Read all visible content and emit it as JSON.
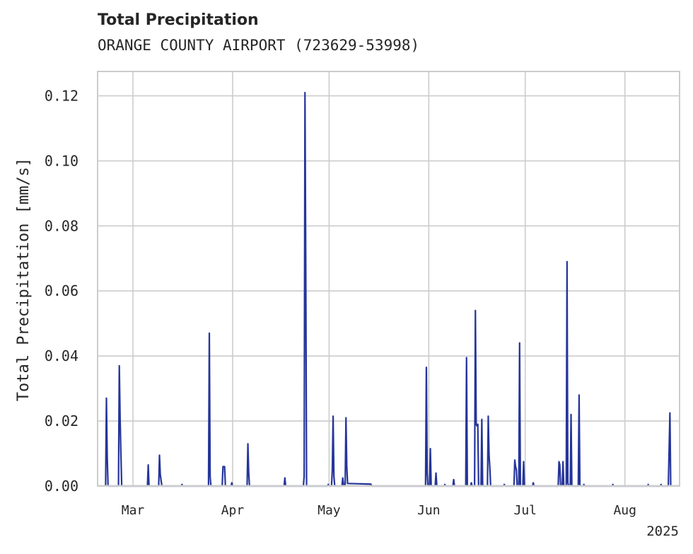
{
  "chart_data": {
    "type": "line",
    "title": "Total Precipitation",
    "subtitle": "ORANGE COUNTY AIRPORT (723629-53998)",
    "ylabel": "Total Precipitation [mm/s]",
    "xlabel": "",
    "x_year_label": "2025",
    "x_range": [
      "2025-02-18",
      "2025-08-18"
    ],
    "ylim": [
      0,
      0.1275
    ],
    "yticks": [
      "0.00",
      "0.02",
      "0.04",
      "0.06",
      "0.08",
      "0.10",
      "0.12"
    ],
    "ytick_values": [
      0,
      0.02,
      0.04,
      0.06,
      0.08,
      0.1,
      0.12
    ],
    "xticks": [
      {
        "date": "2025-03-01",
        "label": "Mar"
      },
      {
        "date": "2025-04-01",
        "label": "Apr"
      },
      {
        "date": "2025-05-01",
        "label": "May"
      },
      {
        "date": "2025-06-01",
        "label": "Jun"
      },
      {
        "date": "2025-07-01",
        "label": "Jul"
      },
      {
        "date": "2025-08-01",
        "label": "Aug"
      }
    ],
    "grid": true,
    "series_color": "#25359a",
    "series": [
      {
        "name": "",
        "points": [
          [
            "2025-02-20T12:00",
            0.0
          ],
          [
            "2025-02-20T18:00",
            0.027
          ],
          [
            "2025-02-21T00:00",
            0.009
          ],
          [
            "2025-02-21T06:00",
            0.0
          ],
          [
            "2025-02-24T12:00",
            0.0
          ],
          [
            "2025-02-24T18:00",
            0.037
          ],
          [
            "2025-02-25T00:00",
            0.021
          ],
          [
            "2025-02-25T06:00",
            0.01
          ],
          [
            "2025-02-25T12:00",
            0.0
          ],
          [
            "2025-03-05T12:00",
            0.0
          ],
          [
            "2025-03-05T18:00",
            0.0065
          ],
          [
            "2025-03-06T00:00",
            0.0
          ],
          [
            "2025-03-09T00:00",
            0.0
          ],
          [
            "2025-03-09T06:00",
            0.0095
          ],
          [
            "2025-03-09T12:00",
            0.0035
          ],
          [
            "2025-03-10T00:00",
            0.0
          ],
          [
            "2025-03-16T00:00",
            0.0
          ],
          [
            "2025-03-16T06:00",
            0.0005
          ],
          [
            "2025-03-16T12:00",
            0.0
          ],
          [
            "2025-03-24T12:00",
            0.0
          ],
          [
            "2025-03-24T18:00",
            0.047
          ],
          [
            "2025-03-25T00:00",
            0.003
          ],
          [
            "2025-03-25T06:00",
            0.0
          ],
          [
            "2025-03-28T18:00",
            0.0
          ],
          [
            "2025-03-29T00:00",
            0.006
          ],
          [
            "2025-03-29T12:00",
            0.006
          ],
          [
            "2025-03-29T18:00",
            0.0
          ],
          [
            "2025-03-31T12:00",
            0.0
          ],
          [
            "2025-03-31T18:00",
            0.001
          ],
          [
            "2025-04-01T00:00",
            0.0
          ],
          [
            "2025-04-05T12:00",
            0.0
          ],
          [
            "2025-04-05T18:00",
            0.013
          ],
          [
            "2025-04-06T00:00",
            0.004
          ],
          [
            "2025-04-06T06:00",
            0.0
          ],
          [
            "2025-04-17T00:00",
            0.0
          ],
          [
            "2025-04-17T06:00",
            0.0025
          ],
          [
            "2025-04-17T12:00",
            0.0
          ],
          [
            "2025-04-23T00:00",
            0.0
          ],
          [
            "2025-04-23T06:00",
            0.003
          ],
          [
            "2025-04-23T12:00",
            0.121
          ],
          [
            "2025-04-23T18:00",
            0.066
          ],
          [
            "2025-04-24T00:00",
            0.0
          ],
          [
            "2025-04-30T12:00",
            0.0
          ],
          [
            "2025-04-30T18:00",
            0.0005
          ],
          [
            "2025-05-01T00:00",
            0.0
          ],
          [
            "2025-05-01T18:00",
            0.0
          ],
          [
            "2025-05-02T00:00",
            0.005
          ],
          [
            "2025-05-02T06:00",
            0.0215
          ],
          [
            "2025-05-02T12:00",
            0.003
          ],
          [
            "2025-05-02T18:00",
            0.0
          ],
          [
            "2025-05-05T00:00",
            0.0
          ],
          [
            "2025-05-05T06:00",
            0.0025
          ],
          [
            "2025-05-05T12:00",
            0.0005
          ],
          [
            "2025-05-06T00:00",
            0.0005
          ],
          [
            "2025-05-06T06:00",
            0.021
          ],
          [
            "2025-05-06T12:00",
            0.006
          ],
          [
            "2025-05-06T18:00",
            0.0008
          ],
          [
            "2025-05-14T00:00",
            0.0006
          ],
          [
            "2025-05-14T06:00",
            0.0
          ],
          [
            "2025-05-31T00:00",
            0.0
          ],
          [
            "2025-05-31T06:00",
            0.0365
          ],
          [
            "2025-05-31T12:00",
            0.004
          ],
          [
            "2025-05-31T18:00",
            0.0
          ],
          [
            "2025-06-01T06:00",
            0.0
          ],
          [
            "2025-06-01T12:00",
            0.0115
          ],
          [
            "2025-06-01T18:00",
            0.0
          ],
          [
            "2025-06-03T00:00",
            0.0
          ],
          [
            "2025-06-03T06:00",
            0.004
          ],
          [
            "2025-06-03T12:00",
            0.0
          ],
          [
            "2025-06-05T18:00",
            0.0
          ],
          [
            "2025-06-06T00:00",
            0.0005
          ],
          [
            "2025-06-06T06:00",
            0.0
          ],
          [
            "2025-06-08T12:00",
            0.0
          ],
          [
            "2025-06-08T18:00",
            0.002
          ],
          [
            "2025-06-09T00:00",
            0.0
          ],
          [
            "2025-06-12T12:00",
            0.0
          ],
          [
            "2025-06-12T18:00",
            0.0395
          ],
          [
            "2025-06-13T00:00",
            0.0
          ],
          [
            "2025-06-14T00:00",
            0.0
          ],
          [
            "2025-06-14T06:00",
            0.001
          ],
          [
            "2025-06-14T12:00",
            0.0
          ],
          [
            "2025-06-15T06:00",
            0.0
          ],
          [
            "2025-06-15T12:00",
            0.054
          ],
          [
            "2025-06-15T18:00",
            0.019
          ],
          [
            "2025-06-16T00:00",
            0.0185
          ],
          [
            "2025-06-16T06:00",
            0.019
          ],
          [
            "2025-06-16T12:00",
            0.0
          ],
          [
            "2025-06-17T06:00",
            0.0
          ],
          [
            "2025-06-17T12:00",
            0.0205
          ],
          [
            "2025-06-17T18:00",
            0.0005
          ],
          [
            "2025-06-18T00:00",
            0.0
          ],
          [
            "2025-06-19T06:00",
            0.0
          ],
          [
            "2025-06-19T12:00",
            0.0215
          ],
          [
            "2025-06-19T18:00",
            0.0095
          ],
          [
            "2025-06-20T00:00",
            0.0055
          ],
          [
            "2025-06-20T06:00",
            0.0
          ],
          [
            "2025-06-24T06:00",
            0.0
          ],
          [
            "2025-06-24T12:00",
            0.0005
          ],
          [
            "2025-06-24T18:00",
            0.0
          ],
          [
            "2025-06-27T12:00",
            0.0
          ],
          [
            "2025-06-27T18:00",
            0.008
          ],
          [
            "2025-06-28T00:00",
            0.006
          ],
          [
            "2025-06-28T06:00",
            0.005
          ],
          [
            "2025-06-28T12:00",
            0.0
          ],
          [
            "2025-06-29T00:00",
            0.0
          ],
          [
            "2025-06-29T06:00",
            0.044
          ],
          [
            "2025-06-29T12:00",
            0.0
          ],
          [
            "2025-06-30T06:00",
            0.0
          ],
          [
            "2025-06-30T12:00",
            0.0075
          ],
          [
            "2025-06-30T18:00",
            0.0
          ],
          [
            "2025-07-03T06:00",
            0.0
          ],
          [
            "2025-07-03T12:00",
            0.001
          ],
          [
            "2025-07-03T18:00",
            0.0
          ],
          [
            "2025-07-11T06:00",
            0.0
          ],
          [
            "2025-07-11T12:00",
            0.0075
          ],
          [
            "2025-07-11T18:00",
            0.0065
          ],
          [
            "2025-07-12T00:00",
            0.0
          ],
          [
            "2025-07-12T12:00",
            0.0
          ],
          [
            "2025-07-12T18:00",
            0.0075
          ],
          [
            "2025-07-13T00:00",
            0.0
          ],
          [
            "2025-07-13T18:00",
            0.0
          ],
          [
            "2025-07-14T00:00",
            0.069
          ],
          [
            "2025-07-14T06:00",
            0.001
          ],
          [
            "2025-07-14T12:00",
            0.0
          ],
          [
            "2025-07-15T00:00",
            0.0
          ],
          [
            "2025-07-15T06:00",
            0.022
          ],
          [
            "2025-07-15T12:00",
            0.0
          ],
          [
            "2025-07-17T12:00",
            0.0
          ],
          [
            "2025-07-17T18:00",
            0.028
          ],
          [
            "2025-07-18T00:00",
            0.0005
          ],
          [
            "2025-07-18T06:00",
            0.0
          ],
          [
            "2025-07-19T00:00",
            0.0
          ],
          [
            "2025-07-19T06:00",
            0.0005
          ],
          [
            "2025-07-19T12:00",
            0.0
          ],
          [
            "2025-07-28T00:00",
            0.0
          ],
          [
            "2025-07-28T06:00",
            0.0005
          ],
          [
            "2025-07-28T12:00",
            0.0
          ],
          [
            "2025-08-08T00:00",
            0.0
          ],
          [
            "2025-08-08T06:00",
            0.0005
          ],
          [
            "2025-08-08T12:00",
            0.0
          ],
          [
            "2025-08-12T00:00",
            0.0
          ],
          [
            "2025-08-12T06:00",
            0.0005
          ],
          [
            "2025-08-12T12:00",
            0.0
          ],
          [
            "2025-08-14T12:00",
            0.0
          ],
          [
            "2025-08-14T18:00",
            0.011
          ],
          [
            "2025-08-15T00:00",
            0.0225
          ],
          [
            "2025-08-15T06:00",
            0.0
          ]
        ]
      }
    ]
  }
}
